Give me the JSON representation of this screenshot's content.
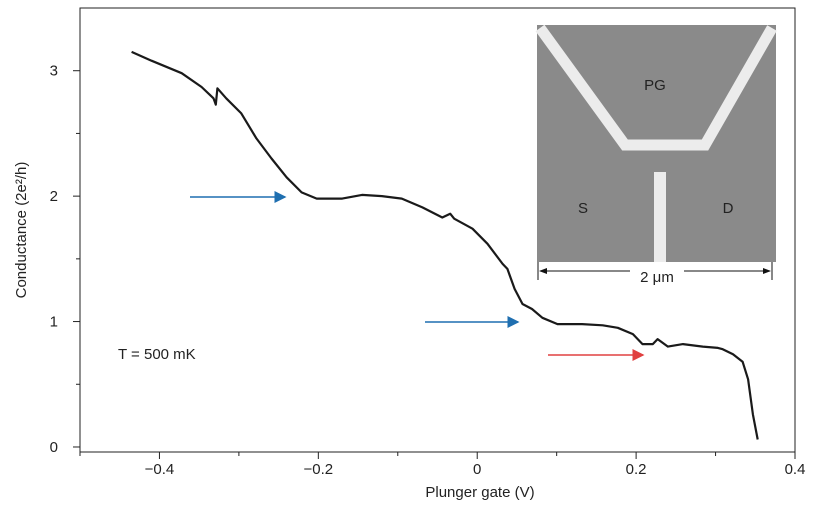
{
  "chart_data": {
    "type": "line",
    "xlabel": "Plunger gate (V)",
    "ylabel": "Conductance (2e²/h)",
    "annotation": "T = 500 mK",
    "xlim": [
      -0.5,
      0.4
    ],
    "ylim": [
      -0.04,
      3.5
    ],
    "xticks": [
      {
        "value": -0.4,
        "label": "−0.4"
      },
      {
        "value": -0.2,
        "label": "−0.2"
      },
      0,
      0.2,
      0.4
    ],
    "xminorticks": [
      -0.5,
      -0.3,
      -0.1,
      0.1,
      0.3
    ],
    "yticks": [
      0,
      1,
      2,
      3
    ],
    "yminorticks": [
      0.5,
      1.5,
      2.5
    ],
    "series": [
      {
        "color": "#1a1a1a",
        "x": [
          -0.435,
          -0.41,
          -0.372,
          -0.347,
          -0.332,
          -0.329,
          -0.327,
          -0.316,
          -0.297,
          -0.278,
          -0.259,
          -0.24,
          -0.221,
          -0.202,
          -0.17,
          -0.145,
          -0.12,
          -0.095,
          -0.069,
          -0.044,
          -0.034,
          -0.029,
          -0.006,
          0.013,
          0.032,
          0.038,
          0.047,
          0.057,
          0.069,
          0.082,
          0.101,
          0.132,
          0.158,
          0.177,
          0.196,
          0.208,
          0.221,
          0.227,
          0.24,
          0.259,
          0.284,
          0.303,
          0.309,
          0.322,
          0.334,
          0.341,
          0.347,
          0.353
        ],
        "values": [
          3.15,
          3.08,
          2.98,
          2.87,
          2.78,
          2.73,
          2.86,
          2.78,
          2.66,
          2.46,
          2.3,
          2.15,
          2.03,
          1.98,
          1.98,
          2.01,
          2.0,
          1.98,
          1.91,
          1.83,
          1.86,
          1.82,
          1.74,
          1.62,
          1.46,
          1.42,
          1.26,
          1.14,
          1.1,
          1.03,
          0.98,
          0.98,
          0.97,
          0.95,
          0.9,
          0.82,
          0.82,
          0.86,
          0.8,
          0.82,
          0.8,
          0.79,
          0.78,
          0.74,
          0.68,
          0.54,
          0.26,
          0.06
        ]
      }
    ],
    "inset": {
      "labels": [
        "PG",
        "S",
        "D"
      ],
      "scale_bar": "2 μm"
    }
  }
}
